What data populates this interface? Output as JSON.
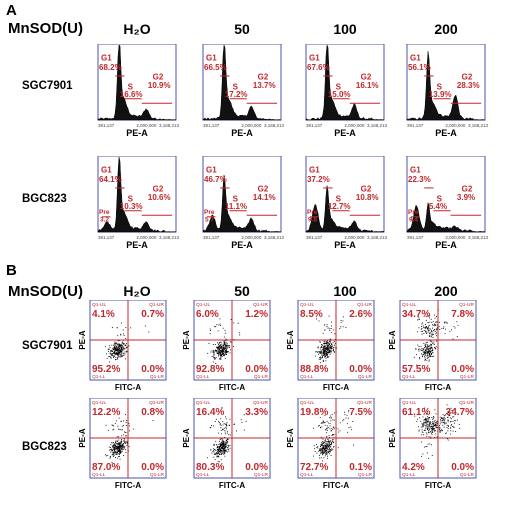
{
  "panelA": {
    "letter": "A",
    "header": "MnSOD(U)",
    "concentrations": [
      "H₂O",
      "50",
      "100",
      "200"
    ],
    "rows": [
      {
        "label": "SGC7901",
        "plots": [
          {
            "gates": [
              {
                "name": "G1",
                "value": "68.2%"
              },
              {
                "name": "S",
                "value": "16.6%"
              },
              {
                "name": "G2",
                "value": "10.9%"
              }
            ],
            "pre": null
          },
          {
            "gates": [
              {
                "name": "G1",
                "value": "66.5%"
              },
              {
                "name": "S",
                "value": "17.2%"
              },
              {
                "name": "G2",
                "value": "13.7%"
              }
            ],
            "pre": null
          },
          {
            "gates": [
              {
                "name": "G1",
                "value": "67.6%"
              },
              {
                "name": "S",
                "value": "15.0%"
              },
              {
                "name": "G2",
                "value": "16.1%"
              }
            ],
            "pre": null
          },
          {
            "gates": [
              {
                "name": "G1",
                "value": "56.1%"
              },
              {
                "name": "S",
                "value": "13.9%"
              },
              {
                "name": "G2",
                "value": "28.3%"
              }
            ],
            "pre": null
          }
        ]
      },
      {
        "label": "BGC823",
        "plots": [
          {
            "gates": [
              {
                "name": "G1",
                "value": "64.1%"
              },
              {
                "name": "S",
                "value": "10.3%"
              },
              {
                "name": "G2",
                "value": "10.6%"
              }
            ],
            "pre": {
              "name": "Pre",
              "value": "3.2"
            }
          },
          {
            "gates": [
              {
                "name": "G1",
                "value": "46.7%"
              },
              {
                "name": "S",
                "value": "11.1%"
              },
              {
                "name": "G2",
                "value": "14.1%"
              }
            ],
            "pre": {
              "name": "Pre",
              "value": "5.7"
            }
          },
          {
            "gates": [
              {
                "name": "G1",
                "value": "37.2%"
              },
              {
                "name": "S",
                "value": "12.7%"
              },
              {
                "name": "G2",
                "value": "10.8%"
              }
            ],
            "pre": {
              "name": "Pre",
              "value": "9.8"
            }
          },
          {
            "gates": [
              {
                "name": "G1",
                "value": "22.3%"
              },
              {
                "name": "S",
                "value": "5.4%"
              },
              {
                "name": "G2",
                "value": "3.9%"
              }
            ],
            "pre": {
              "name": "Pre",
              "value": "9.4"
            }
          }
        ]
      }
    ],
    "xaxis": {
      "label": "PE-A",
      "ticks": [
        "391,137",
        "2,000,000",
        "3,168,213"
      ]
    }
  },
  "panelB": {
    "letter": "B",
    "header": "MnSOD(U)",
    "concentrations": [
      "H₂O",
      "50",
      "100",
      "200"
    ],
    "quadrant_names": {
      "ul": "Q1-UL",
      "ur": "Q1-UR",
      "ll": "Q1-LL",
      "lr": "Q1-LR"
    },
    "xlabel": "FITC-A",
    "ylabel": "PE-A",
    "rows": [
      {
        "label": "SGC7901",
        "plots": [
          {
            "ul": "4.1%",
            "ur": "0.7%",
            "ll": "95.2%",
            "lr": "0.0%"
          },
          {
            "ul": "6.0%",
            "ur": "1.2%",
            "ll": "92.8%",
            "lr": "0.0%"
          },
          {
            "ul": "8.5%",
            "ur": "2.6%",
            "ll": "88.8%",
            "lr": "0.0%"
          },
          {
            "ul": "34.7%",
            "ur": "7.8%",
            "ll": "57.5%",
            "lr": "0.0%"
          }
        ]
      },
      {
        "label": "BGC823",
        "plots": [
          {
            "ul": "12.2%",
            "ur": "0.8%",
            "ll": "87.0%",
            "lr": "0.0%"
          },
          {
            "ul": "16.4%",
            "ur": "3.3%",
            "ll": "80.3%",
            "lr": "0.0%"
          },
          {
            "ul": "19.8%",
            "ur": "7.5%",
            "ll": "72.7%",
            "lr": "0.1%"
          },
          {
            "ul": "61.1%",
            "ur": "34.7%",
            "ll": "4.2%",
            "lr": "0.0%"
          }
        ]
      }
    ]
  },
  "colors": {
    "label_red": "#c0282d",
    "axis_blue": "#4a55a8",
    "quad_red": "#c0282d",
    "bg": "#ffffff"
  }
}
